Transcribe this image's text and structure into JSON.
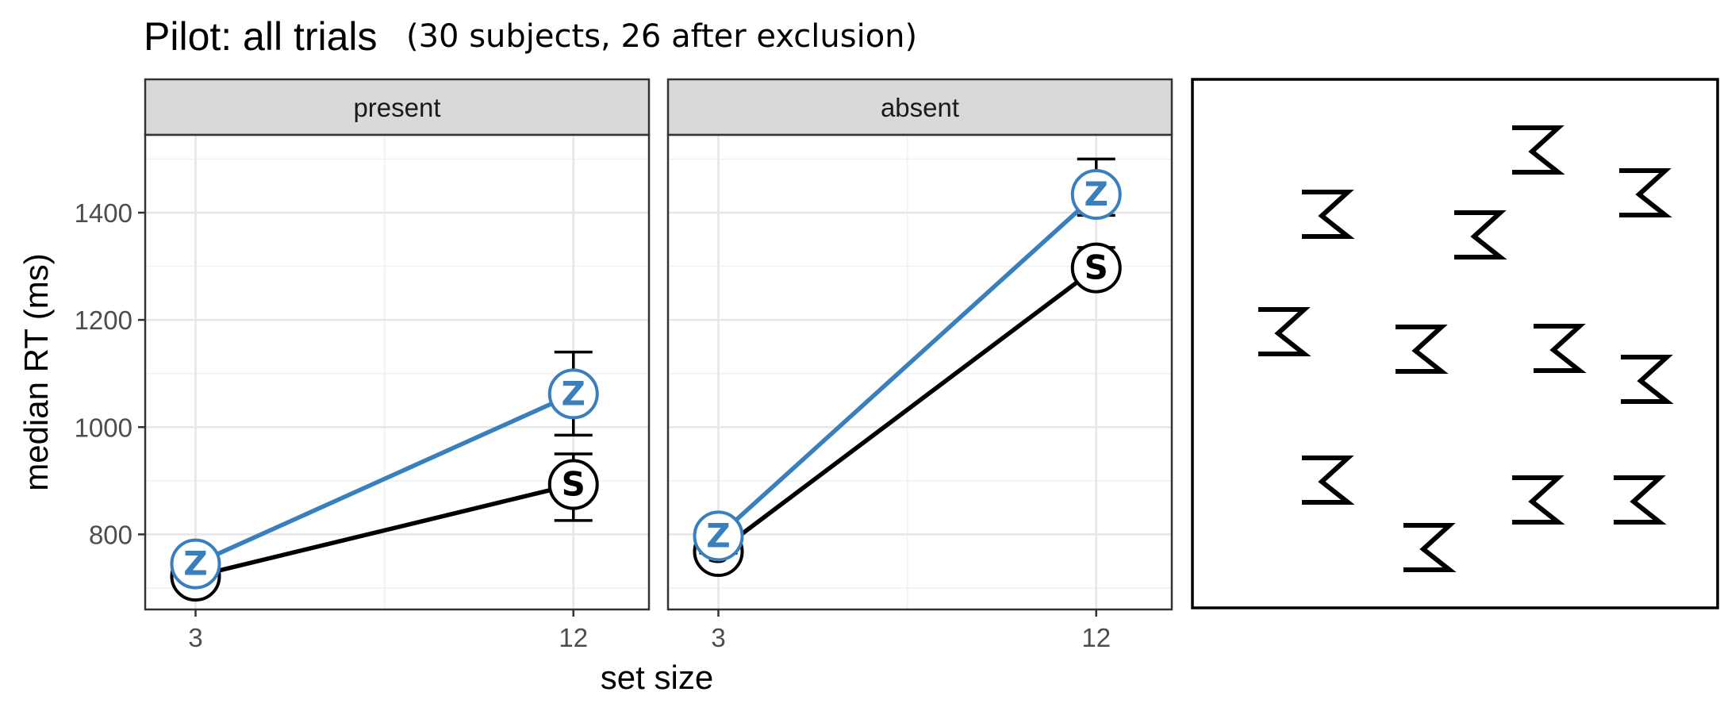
{
  "title": "Pilot: all trials",
  "subtitle": "(30 subjects, 26 after exclusion)",
  "chart_data": {
    "type": "line",
    "xlabel": "set size",
    "ylabel": "median RT (ms)",
    "x": [
      3,
      12
    ],
    "x_ticks": [
      "3",
      "12"
    ],
    "y_ticks": [
      "800",
      "1000",
      "1200",
      "1400"
    ],
    "ylim": [
      660,
      1545
    ],
    "grid": true,
    "panels": [
      {
        "label": "present",
        "series": [
          {
            "marker": "Z",
            "color": "#3a7fbd",
            "values": [
              745,
              1062
            ],
            "err_low": [
              725,
              985
            ],
            "err_high": [
              765,
              1140
            ]
          },
          {
            "marker": "S",
            "color": "#000000",
            "values": [
              722,
              893
            ],
            "err_low": [
              705,
              826
            ],
            "err_high": [
              740,
              950
            ]
          }
        ]
      },
      {
        "label": "absent",
        "series": [
          {
            "marker": "Z",
            "color": "#3a7fbd",
            "values": [
              797,
              1434
            ],
            "err_low": [
              765,
              1395
            ],
            "err_high": [
              825,
              1500
            ]
          },
          {
            "marker": "S",
            "color": "#000000",
            "values": [
              768,
              1297
            ],
            "err_low": [
              740,
              1270
            ],
            "err_high": [
              800,
              1335
            ]
          }
        ]
      }
    ]
  }
}
